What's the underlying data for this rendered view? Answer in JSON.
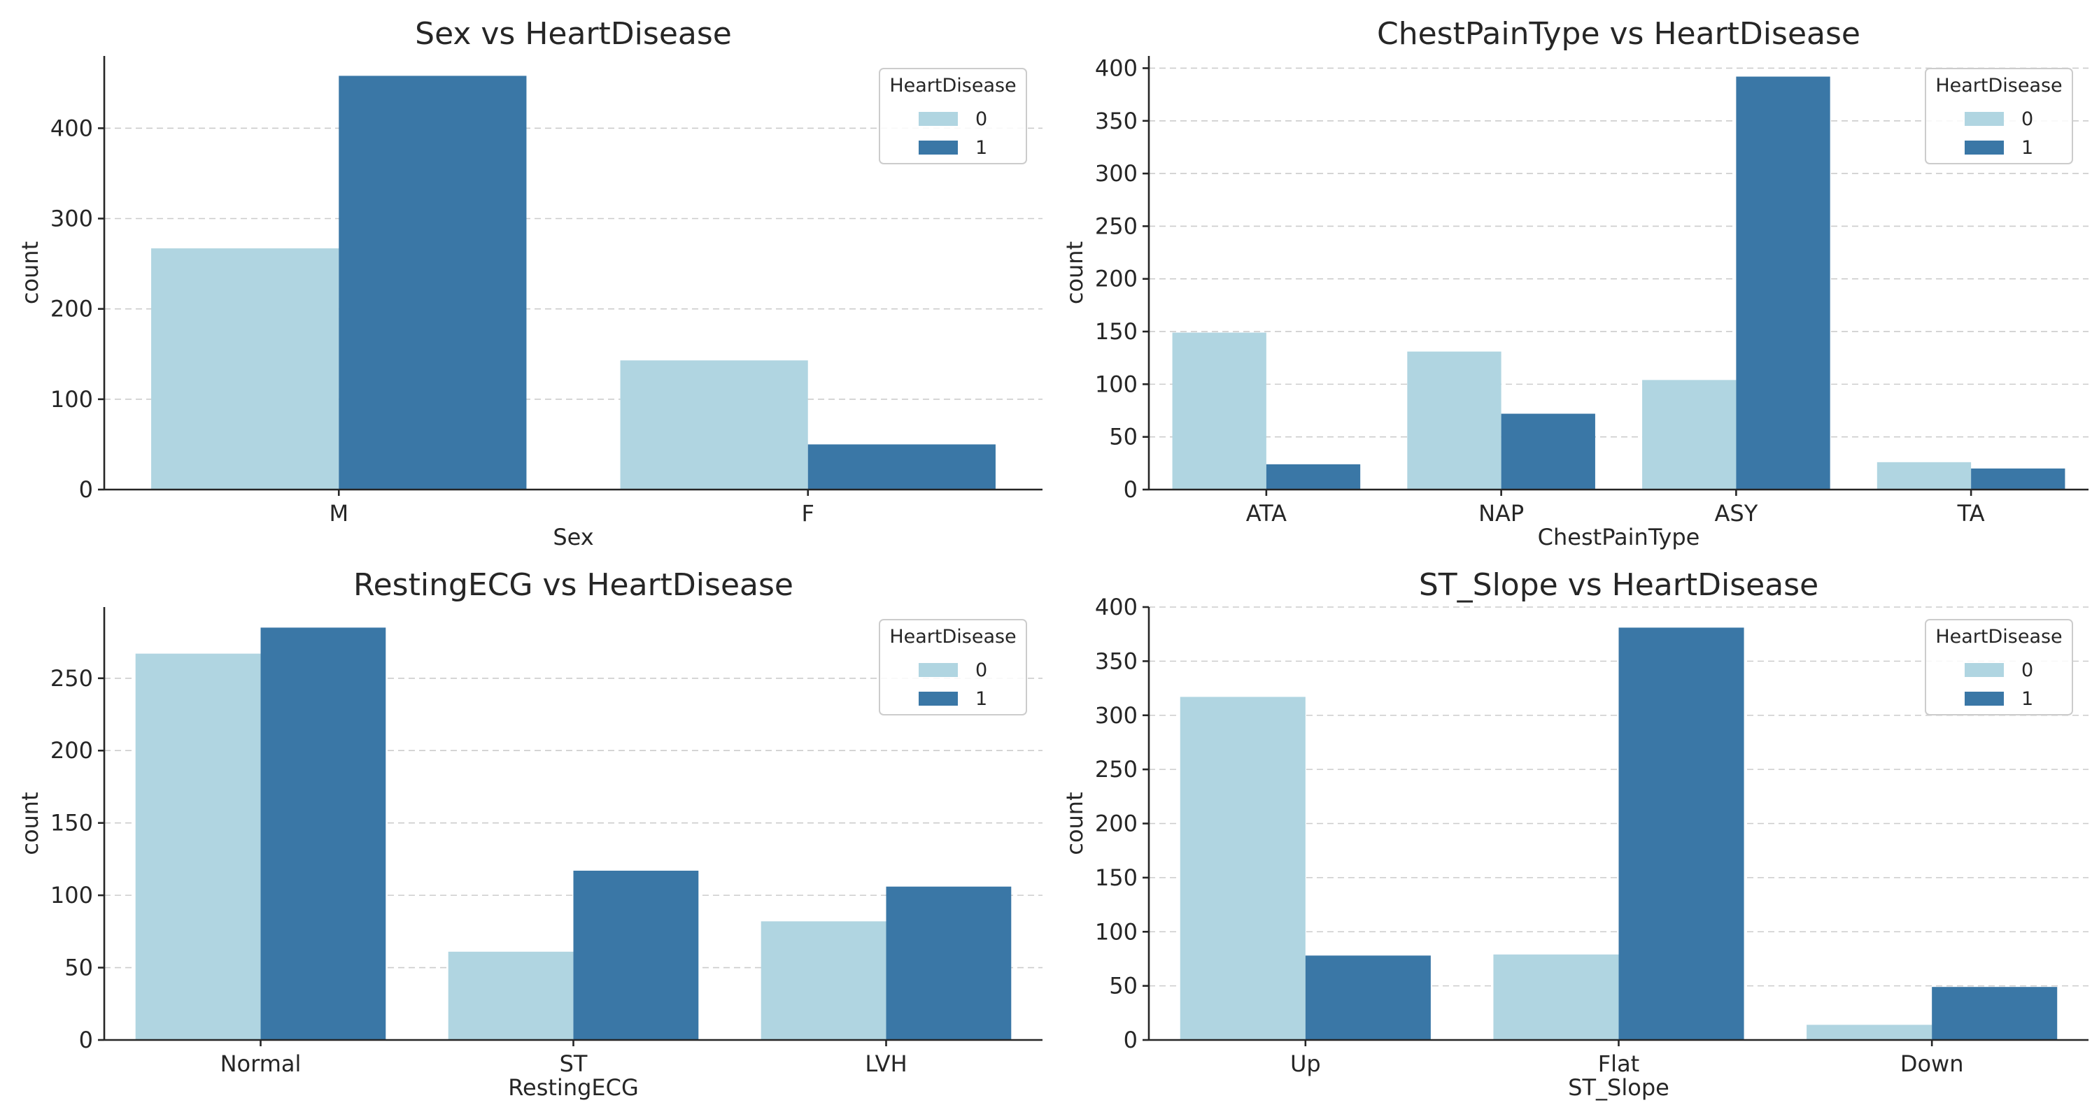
{
  "colors": {
    "0": "#b0d5e1",
    "1": "#3a77a6"
  },
  "chart_data": [
    {
      "type": "bar",
      "title": "Sex vs HeartDisease",
      "xlabel": "Sex",
      "ylabel": "count",
      "categories": [
        "M",
        "F"
      ],
      "series": [
        {
          "name": "0",
          "values": [
            267,
            143
          ]
        },
        {
          "name": "1",
          "values": [
            458,
            50
          ]
        }
      ],
      "ylim": [
        0,
        480
      ],
      "yticks": [
        0,
        100,
        200,
        300,
        400
      ],
      "legend": {
        "title": "HeartDisease",
        "placement": "top-right"
      },
      "grid": "y"
    },
    {
      "type": "bar",
      "title": "ChestPainType vs HeartDisease",
      "xlabel": "ChestPainType",
      "ylabel": "count",
      "categories": [
        "ATA",
        "NAP",
        "ASY",
        "TA"
      ],
      "series": [
        {
          "name": "0",
          "values": [
            149,
            131,
            104,
            26
          ]
        },
        {
          "name": "1",
          "values": [
            24,
            72,
            392,
            20
          ]
        }
      ],
      "ylim": [
        0,
        411.6
      ],
      "yticks": [
        0,
        50,
        100,
        150,
        200,
        250,
        300,
        350,
        400
      ],
      "legend": {
        "title": "HeartDisease",
        "placement": "top-right"
      },
      "grid": "y"
    },
    {
      "type": "bar",
      "title": "RestingECG vs HeartDisease",
      "xlabel": "RestingECG",
      "ylabel": "count",
      "categories": [
        "Normal",
        "ST",
        "LVH"
      ],
      "series": [
        {
          "name": "0",
          "values": [
            267,
            61,
            82
          ]
        },
        {
          "name": "1",
          "values": [
            285,
            117,
            106
          ]
        }
      ],
      "ylim": [
        0,
        299.2
      ],
      "yticks": [
        0,
        50,
        100,
        150,
        200,
        250
      ],
      "legend": {
        "title": "HeartDisease",
        "placement": "top-right"
      },
      "grid": "y"
    },
    {
      "type": "bar",
      "title": "ST_Slope vs HeartDisease",
      "xlabel": "ST_Slope",
      "ylabel": "count",
      "categories": [
        "Up",
        "Flat",
        "Down"
      ],
      "series": [
        {
          "name": "0",
          "values": [
            317,
            79,
            14
          ]
        },
        {
          "name": "1",
          "values": [
            78,
            381,
            49
          ]
        }
      ],
      "ylim": [
        0,
        400
      ],
      "yticks": [
        0,
        50,
        100,
        150,
        200,
        250,
        300,
        350,
        400
      ],
      "legend": {
        "title": "HeartDisease",
        "placement": "top-right"
      },
      "grid": "y"
    }
  ]
}
